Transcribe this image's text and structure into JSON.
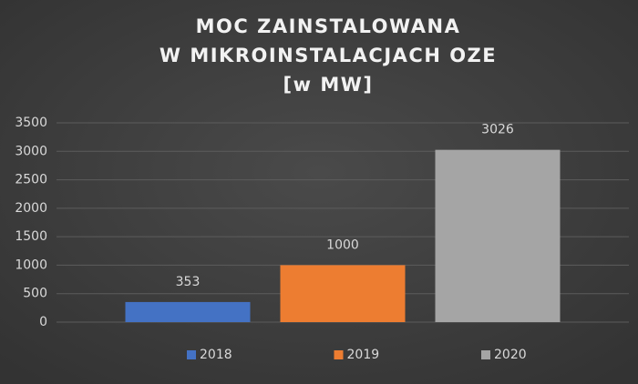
{
  "chart_data": {
    "type": "bar",
    "title": [
      "MOC ZAINSTALOWANA",
      "W MIKROINSTALACJACH OZE",
      "[w MW]"
    ],
    "categories": [
      null
    ],
    "series": [
      {
        "name": "2018",
        "color": "#4472c4",
        "values": [
          353
        ]
      },
      {
        "name": "2019",
        "color": "#ed7d31",
        "values": [
          1000
        ]
      },
      {
        "name": "2020",
        "color": "#a5a5a5",
        "values": [
          3026
        ]
      }
    ],
    "ylim": [
      0,
      3500
    ],
    "yticks": [
      0,
      500,
      1000,
      1500,
      2000,
      2500,
      3000,
      3500
    ],
    "grid": true,
    "legend": "bottom",
    "data_labels": true
  }
}
